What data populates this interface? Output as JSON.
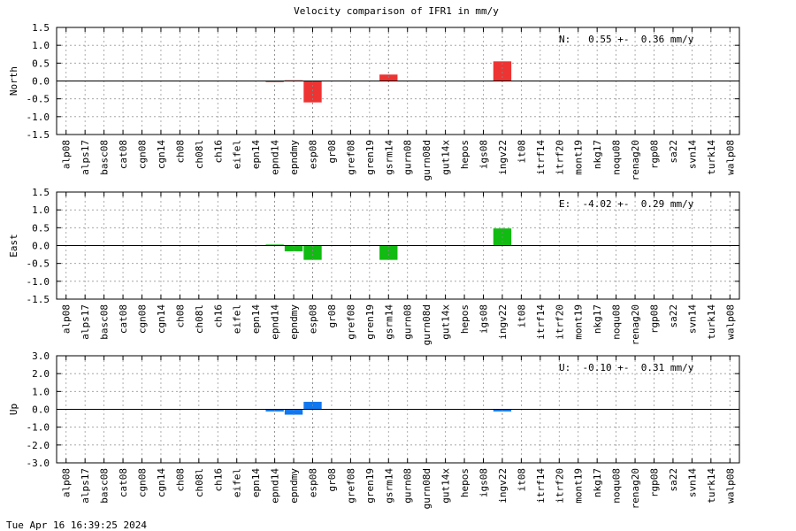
{
  "chart_data": {
    "type": "bar",
    "title": "Velocity comparison of IFR1 in mm/y",
    "timestamp": "Tue Apr 16 16:39:25 2024",
    "categories": [
      "alp08",
      "alps17",
      "basc08",
      "cat08",
      "cgn08",
      "cgn14",
      "ch08",
      "ch08l",
      "ch16",
      "eifel",
      "epn14",
      "epnd14",
      "epndmy",
      "esp08",
      "gr08",
      "gref08",
      "gren19",
      "gsrm14",
      "gurn08",
      "gurn08d",
      "gut14x",
      "hepos",
      "igs08",
      "ingv22",
      "it08",
      "itrf14",
      "itrf20",
      "mont19",
      "nkg17",
      "noqu08",
      "renag20",
      "rgp08",
      "sa22",
      "svn14",
      "turk14",
      "walp08"
    ],
    "grid": true,
    "panels": [
      {
        "ylabel": "North",
        "ylim": [
          -1.5,
          1.5
        ],
        "yticks": [
          "-1.5",
          "-1.0",
          "-0.5",
          "0.0",
          "0.5",
          "1.0",
          "1.5"
        ],
        "ytick_values": [
          -1.5,
          -1.0,
          -0.5,
          0.0,
          0.5,
          1.0,
          1.5
        ],
        "annotation": "N:   0.55 +-  0.36 mm/y",
        "color": "#ee3333",
        "values": [
          0,
          0,
          0,
          0,
          0,
          0,
          0,
          0,
          0,
          0,
          0,
          -0.03,
          0.02,
          -0.6,
          0,
          0,
          0,
          0.18,
          0,
          0,
          0,
          0,
          0,
          0.55,
          0,
          0,
          0,
          0,
          0,
          0,
          0,
          0,
          0,
          0,
          0,
          0
        ]
      },
      {
        "ylabel": "East",
        "ylim": [
          -1.5,
          1.5
        ],
        "yticks": [
          "-1.5",
          "-1.0",
          "-0.5",
          "0.0",
          "0.5",
          "1.0",
          "1.5"
        ],
        "ytick_values": [
          -1.5,
          -1.0,
          -0.5,
          0.0,
          0.5,
          1.0,
          1.5
        ],
        "annotation": "E:  -4.02 +-  0.29 mm/y",
        "color": "#11bb11",
        "values": [
          0,
          0,
          0,
          0,
          0,
          0,
          0,
          0,
          0,
          0,
          0,
          0.03,
          -0.16,
          -0.4,
          0,
          0,
          0,
          -0.4,
          0,
          0,
          0,
          0,
          0,
          0.48,
          0,
          0,
          0,
          0,
          0,
          0,
          0,
          0,
          0,
          0,
          0,
          0
        ]
      },
      {
        "ylabel": "Up",
        "ylim": [
          -3.0,
          3.0
        ],
        "yticks": [
          "-3.0",
          "-2.0",
          "-1.0",
          "0.0",
          "1.0",
          "2.0",
          "3.0"
        ],
        "ytick_values": [
          -3.0,
          -2.0,
          -1.0,
          0.0,
          1.0,
          2.0,
          3.0
        ],
        "annotation": "U:  -0.10 +-  0.31 mm/y",
        "color": "#1177ee",
        "values": [
          0,
          0,
          0,
          0,
          0,
          0,
          0,
          0,
          0,
          0,
          0,
          -0.12,
          -0.3,
          0.42,
          0,
          0,
          0,
          0,
          0,
          0,
          0,
          0,
          0,
          -0.12,
          0,
          0,
          0,
          0,
          0,
          0,
          0,
          0,
          0,
          0,
          0,
          0
        ]
      }
    ]
  }
}
